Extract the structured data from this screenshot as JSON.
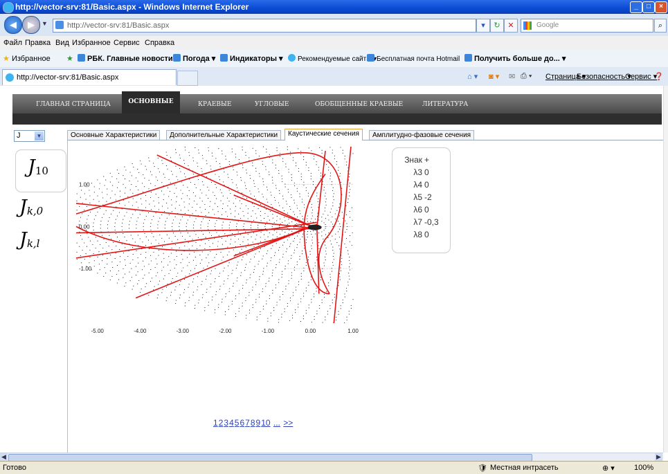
{
  "window": {
    "title": "http://vector-srv:81/Basic.aspx - Windows Internet Explorer"
  },
  "addressbar": {
    "url": "http://vector-srv:81/Basic.aspx",
    "search_placeholder": "Google"
  },
  "menu": [
    "Файл",
    "Правка",
    "Вид",
    "Избранное",
    "Сервис",
    "Справка"
  ],
  "favorites": {
    "label": "Избранное",
    "items": [
      "РБК. Главные новости ▾",
      "Погода ▾",
      "Индикаторы ▾",
      "Рекомендуемые сайты ▾",
      "Бесплатная почта Hotmail",
      "Получить больше до... ▾"
    ]
  },
  "ie_tab": {
    "label": "http://vector-srv:81/Basic.aspx"
  },
  "commandbar": {
    "page": "Страница ▾",
    "safety": "Безопасность ▾",
    "tools": "Сервис ▾"
  },
  "site": {
    "nav": [
      "ГЛАВНАЯ СТРАНИЦА",
      "ОСНОВНЫЕ",
      "КРАЕВЫЕ",
      "УГЛОВЫЕ",
      "ОБОБЩЕННЫЕ КРАЕВЫЕ",
      "ЛИТЕРАТУРА"
    ],
    "active_nav": "ОСНОВНЫЕ",
    "select_value": "J",
    "subtabs": [
      "Основные Характеристики",
      "Дополнительные Характеристики",
      "Каустические сечения",
      "Амплитудно-фазовые сечения"
    ],
    "active_subtab": "Каустические сечения",
    "j_items": [
      {
        "base": "J",
        "sub": "10"
      },
      {
        "base": "J",
        "sub": "k,0"
      },
      {
        "base": "J",
        "sub": "k,l"
      }
    ],
    "legend": [
      {
        "label": "Знак",
        "value": "+"
      },
      {
        "label": "λ3",
        "value": "0"
      },
      {
        "label": "λ4",
        "value": "0"
      },
      {
        "label": "λ5",
        "value": "-2"
      },
      {
        "label": "λ6",
        "value": "0"
      },
      {
        "label": "λ7",
        "value": "-0,3"
      },
      {
        "label": "λ8",
        "value": "0"
      }
    ],
    "pager": [
      "1",
      "2",
      "3",
      "4",
      "5",
      "6",
      "7",
      "8",
      "9",
      "10",
      "...",
      ">>"
    ]
  },
  "chart_data": {
    "type": "scatter",
    "title": "",
    "xlabel": "",
    "ylabel": "",
    "x_ticks": [
      "-5.00",
      "-4.00",
      "-3.00",
      "-2.00",
      "-1.00",
      "0.00",
      "1.00"
    ],
    "y_ticks": [
      "1.00",
      "0.00",
      "-1.00"
    ],
    "xlim": [
      -5.5,
      1.0
    ],
    "ylim": [
      -2.3,
      1.9
    ],
    "caustic_color": "#e41515",
    "point_color": "#000000"
  },
  "status": {
    "left": "Готово",
    "zone": "Местная интрасеть",
    "zoom": "100%"
  }
}
